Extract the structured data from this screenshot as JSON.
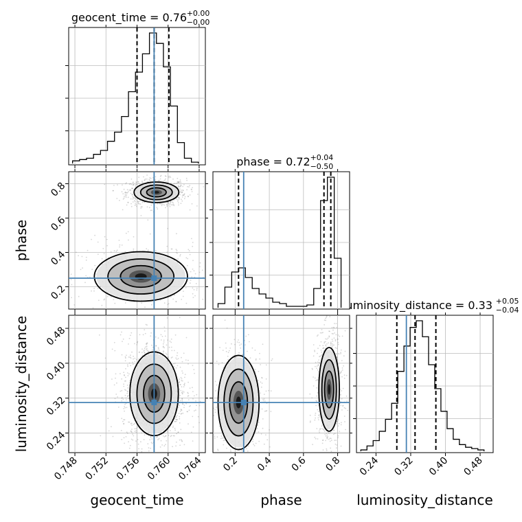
{
  "chart_data": {
    "type": "corner",
    "parameters": [
      "geocent_time",
      "phase",
      "luminosity_distance"
    ],
    "truths": {
      "geocent_time": 0.7582,
      "phase": 0.25,
      "luminosity_distance": 0.31
    },
    "colors": {
      "truth": "#4682b4",
      "hist": "#000000",
      "grid": "#bbbbbb",
      "points": "#888888"
    },
    "titles": [
      {
        "param": "geocent_time",
        "label": "geocent_time = 0.76",
        "plus": "+0.00",
        "minus": "−0.00"
      },
      {
        "param": "phase",
        "label": "phase = 0.72",
        "plus": "+0.04",
        "minus": "−0.50"
      },
      {
        "param": "luminosity_distance",
        "label": "luminosity_distance = 0.33",
        "plus": "+0.05",
        "minus": "−0.04"
      }
    ],
    "xlabels": [
      "geocent_time",
      "phase",
      "luminosity_distance"
    ],
    "ylabels": [
      "phase",
      "luminosity_distance"
    ],
    "ranges": {
      "geocent_time": [
        0.7472,
        0.7648
      ],
      "phase": [
        0.07,
        0.87
      ],
      "luminosity_distance": [
        0.195,
        0.51
      ]
    },
    "ticks": {
      "geocent_time": [
        "0.748",
        "0.752",
        "0.756",
        "0.760",
        "0.764"
      ],
      "phase": [
        "0.2",
        "0.4",
        "0.6",
        "0.8"
      ],
      "luminosity_distance": [
        "0.24",
        "0.32",
        "0.40",
        "0.48"
      ]
    },
    "quantiles": {
      "geocent_time": [
        0.756,
        0.7582,
        0.7601
      ],
      "phase": [
        0.22,
        0.72,
        0.76
      ],
      "luminosity_distance": [
        0.288,
        0.33,
        0.378
      ]
    },
    "histograms": {
      "geocent_time": {
        "edges": [
          0.7477,
          0.7486,
          0.7495,
          0.7504,
          0.7513,
          0.7522,
          0.7531,
          0.754,
          0.7549,
          0.7558,
          0.7567,
          0.7576,
          0.7585,
          0.7594,
          0.7603,
          0.7612,
          0.7621,
          0.763,
          0.7639
        ],
        "counts": [
          0.02,
          0.03,
          0.04,
          0.07,
          0.1,
          0.17,
          0.24,
          0.36,
          0.55,
          0.7,
          0.84,
          1.0,
          0.92,
          0.74,
          0.44,
          0.16,
          0.04,
          0.01
        ]
      },
      "phase": {
        "edges": [
          0.1,
          0.14,
          0.18,
          0.22,
          0.26,
          0.3,
          0.34,
          0.38,
          0.42,
          0.46,
          0.5,
          0.54,
          0.58,
          0.62,
          0.66,
          0.7,
          0.74,
          0.78,
          0.82
        ],
        "counts": [
          0.03,
          0.15,
          0.26,
          0.29,
          0.22,
          0.14,
          0.1,
          0.07,
          0.04,
          0.03,
          0.01,
          0.01,
          0.01,
          0.02,
          0.14,
          0.78,
          0.95,
          0.36
        ]
      },
      "luminosity_distance": {
        "edges": [
          0.205,
          0.2192,
          0.2334,
          0.2476,
          0.2618,
          0.276,
          0.2902,
          0.3044,
          0.3186,
          0.3328,
          0.347,
          0.3612,
          0.3754,
          0.3896,
          0.4038,
          0.418,
          0.4322,
          0.4464,
          0.4606,
          0.4748,
          0.489
        ],
        "counts": [
          0.01,
          0.04,
          0.08,
          0.15,
          0.24,
          0.36,
          0.6,
          0.79,
          0.93,
          0.98,
          0.86,
          0.65,
          0.47,
          0.3,
          0.17,
          0.09,
          0.05,
          0.03,
          0.02,
          0.01
        ]
      }
    },
    "pairs": [
      {
        "x": "geocent_time",
        "y": "phase",
        "modes": [
          {
            "cx": 0.7585,
            "cy": 0.75,
            "sx": 0.0012,
            "sy": 0.025,
            "w": 0.62
          },
          {
            "cx": 0.7565,
            "cy": 0.26,
            "sx": 0.0025,
            "sy": 0.06,
            "w": 0.38
          }
        ]
      },
      {
        "x": "geocent_time",
        "y": "luminosity_distance",
        "modes": [
          {
            "cx": 0.7582,
            "cy": 0.33,
            "sx": 0.0013,
            "sy": 0.04,
            "w": 1.0
          }
        ]
      },
      {
        "x": "phase",
        "y": "luminosity_distance",
        "modes": [
          {
            "cx": 0.75,
            "cy": 0.34,
            "sx": 0.025,
            "sy": 0.04,
            "w": 0.6
          },
          {
            "cx": 0.22,
            "cy": 0.31,
            "sx": 0.05,
            "sy": 0.045,
            "w": 0.4
          }
        ]
      }
    ]
  }
}
